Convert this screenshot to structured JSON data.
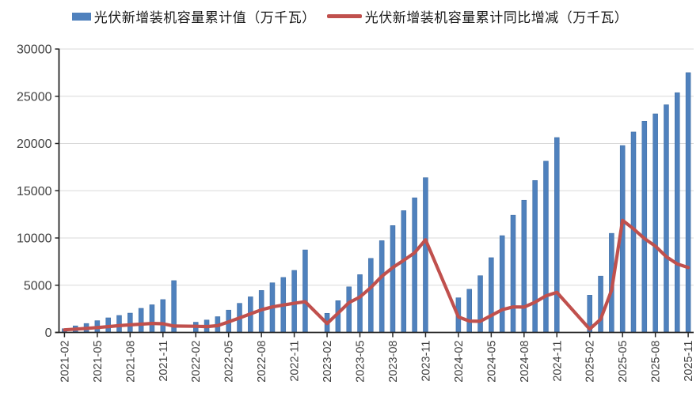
{
  "legend": {
    "series1_label": "光伏新增装机容量累计值（万千瓦）",
    "series2_label": "光伏新增装机容量累计同比增减（万千瓦）"
  },
  "colors": {
    "bar": "#4f81bd",
    "bar_edge": "#3a689f",
    "line": "#c0504d",
    "grid": "#d9d9d9",
    "axis": "#262626",
    "tick_label": "#404040",
    "legend_text": "#1a1a1a",
    "background": "#ffffff"
  },
  "chart_data": {
    "type": "bar",
    "combo": "bar+line",
    "title": "",
    "xlabel": "",
    "ylabel": "",
    "ylim": [
      0,
      30000
    ],
    "yticks": [
      0,
      5000,
      10000,
      15000,
      20000,
      25000,
      30000
    ],
    "grid": true,
    "legend_position": "top",
    "xtick_every": 3,
    "categories": [
      "2021-02",
      "2021-03",
      "2021-04",
      "2021-05",
      "2021-06",
      "2021-07",
      "2021-08",
      "2021-09",
      "2021-10",
      "2021-11",
      "2021-12",
      "2022-01",
      "2022-02",
      "2022-03",
      "2022-04",
      "2022-05",
      "2022-06",
      "2022-07",
      "2022-08",
      "2022-09",
      "2022-10",
      "2022-11",
      "2022-12",
      "2023-01",
      "2023-02",
      "2023-03",
      "2023-04",
      "2023-05",
      "2023-06",
      "2023-07",
      "2023-08",
      "2023-09",
      "2023-10",
      "2023-11",
      "2023-12",
      "2024-01",
      "2024-02",
      "2024-03",
      "2024-04",
      "2024-05",
      "2024-06",
      "2024-07",
      "2024-08",
      "2024-09",
      "2024-10",
      "2024-11",
      "2024-12",
      "2025-01",
      "2025-02",
      "2025-03",
      "2025-04",
      "2025-05",
      "2025-06",
      "2025-07",
      "2025-08",
      "2025-09",
      "2025-10",
      "2025-11"
    ],
    "series": [
      {
        "name": "光伏新增装机容量累计值（万千瓦）",
        "type": "bar",
        "values": [
          400,
          700,
          950,
          1250,
          1550,
          1800,
          2050,
          2556,
          2931,
          3483,
          5488,
          null,
          1086,
          1321,
          1673,
          2371,
          3088,
          3773,
          4447,
          5260,
          5824,
          6571,
          8741,
          null,
          2030,
          3366,
          4831,
          6121,
          7842,
          9716,
          11316,
          12894,
          14256,
          16388,
          null,
          null,
          3672,
          4574,
          6011,
          7915,
          10248,
          12416,
          14000,
          16088,
          18130,
          20632,
          null,
          null,
          3947,
          5971,
          10493,
          19785,
          21221,
          22360,
          23140,
          24100,
          25380,
          27500
        ]
      },
      {
        "name": "光伏新增装机容量累计同比增减（万千瓦）",
        "type": "line",
        "values": [
          280,
          350,
          430,
          520,
          620,
          720,
          800,
          880,
          950,
          920,
          680,
          null,
          650,
          620,
          720,
          1120,
          1540,
          1970,
          2400,
          2700,
          2900,
          3088,
          3253,
          null,
          944,
          2045,
          3158,
          3750,
          4754,
          5943,
          6869,
          7634,
          8432,
          9817,
          null,
          null,
          1642,
          1208,
          1180,
          1794,
          2406,
          2700,
          2684,
          3194,
          3874,
          4244,
          null,
          null,
          350,
          1397,
          4482,
          11870,
          10973,
          9944,
          9140,
          8012,
          7250,
          6868
        ]
      }
    ]
  }
}
